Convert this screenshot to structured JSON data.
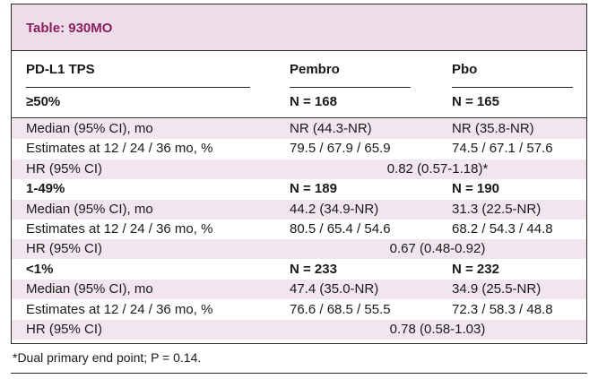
{
  "title": "Table: 930MO",
  "header": {
    "col1": "PD-L1 TPS",
    "col2": "Pembro",
    "col3": "Pbo",
    "group_label": "≥50%",
    "n_pembro": "N = 168",
    "n_pbo": "N = 165"
  },
  "rows": [
    {
      "type": "data",
      "label": "Median (95% CI), mo",
      "pembro": "NR (44.3-NR)",
      "pbo": "NR (35.8-NR)",
      "shade": true
    },
    {
      "type": "data",
      "label": "Estimates at 12 / 24 / 36 mo, %",
      "pembro": "79.5 / 67.9 / 65.9",
      "pbo": "74.5 / 67.1 / 57.6",
      "shade": false
    },
    {
      "type": "hr",
      "label": "HR (95% CI)",
      "value": "0.82 (0.57-1.18)*",
      "shade": true
    },
    {
      "type": "group",
      "label": "1-49%",
      "pembro": "N = 189",
      "pbo": "N = 190",
      "shade": false
    },
    {
      "type": "data",
      "label": "Median (95% CI), mo",
      "pembro": "44.2 (34.9-NR)",
      "pbo": "31.3 (22.5-NR)",
      "shade": true
    },
    {
      "type": "data",
      "label": "Estimates at 12 / 24 / 36 mo, %",
      "pembro": "80.5 / 65.4 / 54.6",
      "pbo": "68.2 / 54.3 / 44.8",
      "shade": false
    },
    {
      "type": "hr",
      "label": "HR (95% CI)",
      "value": "0.67 (0.48-0.92)",
      "shade": true
    },
    {
      "type": "group",
      "label": "<1%",
      "pembro": "N = 233",
      "pbo": "N = 232",
      "shade": false
    },
    {
      "type": "data",
      "label": "Median (95% CI), mo",
      "pembro": "47.4 (35.0-NR)",
      "pbo": "34.9 (25.5-NR)",
      "shade": true
    },
    {
      "type": "data",
      "label": "Estimates at 12 / 24 / 36 mo, %",
      "pembro": "76.6 / 68.5 / 55.5",
      "pbo": "72.3 / 58.3 / 48.8",
      "shade": false
    },
    {
      "type": "hr",
      "label": "HR (95% CI)",
      "value": "0.78 (0.58-1.03)",
      "shade": true
    }
  ],
  "footnote": "*Dual primary end point; P = 0.14.",
  "colors": {
    "accent": "#8b1e5e",
    "band": "#eddde8",
    "row_shade": "#f1e6ee"
  }
}
